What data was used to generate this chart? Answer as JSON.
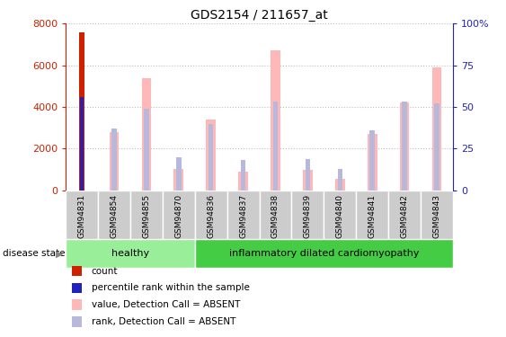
{
  "title": "GDS2154 / 211657_at",
  "samples": [
    "GSM94831",
    "GSM94854",
    "GSM94855",
    "GSM94870",
    "GSM94836",
    "GSM94837",
    "GSM94838",
    "GSM94839",
    "GSM94840",
    "GSM94841",
    "GSM94842",
    "GSM94843"
  ],
  "healthy_count": 4,
  "disease_state_healthy": "healthy",
  "disease_state_disease": "inflammatory dilated cardiomyopathy",
  "ylim_left": [
    0,
    8000
  ],
  "ylim_right": [
    0,
    100
  ],
  "yticks_left": [
    0,
    2000,
    4000,
    6000,
    8000
  ],
  "yticks_right": [
    0,
    25,
    50,
    75,
    100
  ],
  "yticklabels_right": [
    "0",
    "25",
    "50",
    "75",
    "100%"
  ],
  "count_values": [
    7600,
    0,
    0,
    0,
    0,
    0,
    0,
    0,
    0,
    0,
    0,
    0
  ],
  "percentile_pct": [
    56,
    0,
    0,
    0,
    0,
    0,
    0,
    0,
    0,
    0,
    0,
    0
  ],
  "absent_value_bars": [
    0,
    2800,
    5400,
    1050,
    3400,
    900,
    6700,
    1000,
    550,
    2700,
    4200,
    5900
  ],
  "absent_rank_pct": [
    0,
    37,
    49,
    20,
    40,
    18,
    53,
    19,
    13,
    36,
    53,
    52
  ],
  "bar_color_count": "#cc2200",
  "bar_color_percentile": "#2222bb",
  "bar_color_absent_value": "#ffb8b8",
  "bar_color_absent_rank": "#b8b8dd",
  "bg_color_xticklabels": "#cccccc",
  "bg_color_healthy": "#99ee99",
  "bg_color_disease": "#44cc44",
  "left_axis_color": "#cc2200",
  "right_axis_color": "#2222bb",
  "legend_labels": [
    "count",
    "percentile rank within the sample",
    "value, Detection Call = ABSENT",
    "rank, Detection Call = ABSENT"
  ],
  "legend_colors": [
    "#cc2200",
    "#2222bb",
    "#ffb8b8",
    "#b8b8dd"
  ],
  "grid_color": "black",
  "grid_alpha": 0.25,
  "grid_linestyle": "dotted"
}
